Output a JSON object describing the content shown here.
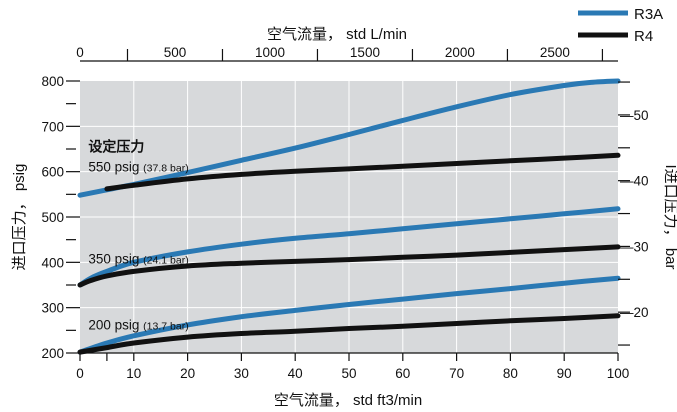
{
  "chart_data": {
    "type": "line",
    "top_axis": {
      "label": "空气流量， std L/min",
      "range": [
        0,
        2832
      ],
      "major_ticks": [
        0,
        500,
        1000,
        1500,
        2000,
        2500
      ],
      "minor_ticks": [
        250,
        750,
        1250,
        1750,
        2250,
        2750
      ]
    },
    "bottom_axis": {
      "label": "空气流量， std ft3/min",
      "range": [
        0,
        100
      ],
      "ticks": [
        0,
        10,
        20,
        30,
        40,
        50,
        60,
        70,
        80,
        90,
        100
      ],
      "minor_ticks": [
        5
      ]
    },
    "left_axis": {
      "label": "进口压力， psig",
      "range": [
        200,
        800
      ],
      "ticks": [
        200,
        300,
        400,
        500,
        600,
        700,
        800
      ],
      "minor_ticks": [
        250,
        350,
        450,
        550,
        650,
        750
      ]
    },
    "right_axis": {
      "label": "I进口压力， bar",
      "range": [
        13.79,
        55.16
      ],
      "ticks": [
        20,
        30,
        40,
        50
      ],
      "minor_ticks": [
        15,
        25,
        35,
        45,
        55
      ]
    },
    "legend": {
      "placement": "top-right",
      "items": [
        {
          "name": "R3A",
          "color": "#2a79b4"
        },
        {
          "name": "R4",
          "color": "#111111"
        }
      ]
    },
    "annotation_heading": "设定压力",
    "setpoints": [
      {
        "main": "550 psig",
        "sub": "(37.8 bar)",
        "at": [
          1,
          600
        ]
      },
      {
        "main": "350 psig",
        "sub": "(24.1 bar)",
        "at": [
          1,
          397
        ]
      },
      {
        "main": "200 psig",
        "sub": "(13.7 bar)",
        "at": [
          1,
          252
        ]
      }
    ],
    "grid": true,
    "plot_background": "#d7d9db",
    "series": [
      {
        "name": "R3A",
        "setpoint": "550 psig",
        "color": "#2a79b4",
        "x": [
          0,
          5,
          10,
          20,
          30,
          40,
          50,
          60,
          70,
          80,
          90,
          95,
          100
        ],
        "y": [
          548,
          560,
          572,
          598,
          625,
          652,
          682,
          713,
          743,
          770,
          790,
          797,
          800
        ]
      },
      {
        "name": "R4",
        "setpoint": "550 psig",
        "color": "#111111",
        "x": [
          5,
          10,
          20,
          30,
          40,
          50,
          60,
          70,
          80,
          90,
          100
        ],
        "y": [
          562,
          570,
          584,
          594,
          601,
          606,
          612,
          618,
          624,
          630,
          636
        ]
      },
      {
        "name": "R3A",
        "setpoint": "350 psig",
        "color": "#2a79b4",
        "x": [
          0,
          2,
          5,
          10,
          20,
          30,
          40,
          50,
          60,
          70,
          80,
          90,
          100
        ],
        "y": [
          350,
          365,
          380,
          400,
          423,
          440,
          453,
          463,
          474,
          485,
          496,
          507,
          518
        ]
      },
      {
        "name": "R4",
        "setpoint": "350 psig",
        "color": "#111111",
        "x": [
          0,
          2,
          5,
          10,
          20,
          30,
          40,
          50,
          60,
          70,
          80,
          90,
          100
        ],
        "y": [
          350,
          360,
          370,
          380,
          392,
          398,
          402,
          406,
          411,
          416,
          422,
          428,
          434
        ]
      },
      {
        "name": "R3A",
        "setpoint": "200 psig",
        "color": "#2a79b4",
        "x": [
          0,
          5,
          10,
          20,
          30,
          40,
          50,
          60,
          70,
          80,
          90,
          100
        ],
        "y": [
          202,
          222,
          238,
          262,
          280,
          294,
          307,
          319,
          331,
          342,
          354,
          365
        ]
      },
      {
        "name": "R4",
        "setpoint": "200 psig",
        "color": "#111111",
        "x": [
          0,
          5,
          10,
          20,
          30,
          40,
          50,
          60,
          70,
          80,
          90,
          100
        ],
        "y": [
          202,
          212,
          222,
          235,
          243,
          248,
          254,
          259,
          265,
          271,
          276,
          282
        ]
      }
    ]
  }
}
